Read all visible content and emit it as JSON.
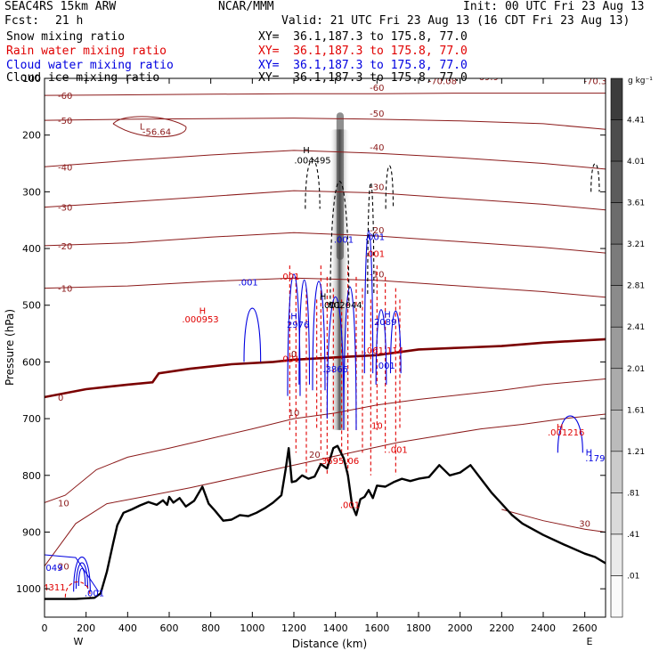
{
  "header": {
    "model": "SEAC4RS 15km ARW",
    "org": "NCAR/MMM",
    "init": "Init: 00 UTC Fri 23 Aug 13",
    "fcst_label": "Fcst:",
    "fcst_value": "21 h",
    "valid": "Valid: 21 UTC Fri 23 Aug 13 (16 CDT Fri 23 Aug 13)"
  },
  "fields": [
    {
      "name": "Snow mixing ratio",
      "xy": "XY=  36.1,187.3 to 175.8, 77.0",
      "color": "#000000"
    },
    {
      "name": "Rain water mixing ratio",
      "xy": "XY=  36.1,187.3 to 175.8, 77.0",
      "color": "#e00000"
    },
    {
      "name": "Cloud water mixing ratio",
      "xy": "XY=  36.1,187.3 to 175.8, 77.0",
      "color": "#0000e0"
    },
    {
      "name": "Cloud ice mixing ratio",
      "xy": "XY=  36.1,187.3 to 175.8, 77.0",
      "color": "#000000"
    }
  ],
  "chart_data": {
    "type": "cross-section contour",
    "xlabel": "Distance (km)",
    "ylabel": "Pressure (hPa)",
    "xlim": [
      0,
      2700
    ],
    "ylim": [
      1050,
      100
    ],
    "xticks": [
      "0",
      "200",
      "400",
      "600",
      "800",
      "1000",
      "1200",
      "1400",
      "1600",
      "1800",
      "2000",
      "2200",
      "2400",
      "2600"
    ],
    "yticks": [
      "100",
      "200",
      "300",
      "400",
      "500",
      "600",
      "700",
      "800",
      "900",
      "1000"
    ],
    "west_label": "W",
    "east_label": "E",
    "colorbar": {
      "unit": "g kg⁻¹",
      "labels": [
        "4.41",
        "4.01",
        "3.61",
        "3.21",
        "2.81",
        "2.41",
        "2.01",
        "1.61",
        "1.21",
        ".81",
        ".41",
        ".01"
      ]
    },
    "temperature_contours": {
      "color": "#8b1a1a",
      "zero_color": "#7a0000",
      "lines": [
        {
          "label": "-60",
          "pts": [
            [
              0,
              130
            ],
            [
              400,
              129
            ],
            [
              800,
              128
            ],
            [
              1200,
              127
            ],
            [
              1600,
              127
            ],
            [
              2000,
              126
            ],
            [
              2400,
              126
            ],
            [
              2700,
              126
            ]
          ]
        },
        {
          "label": "-50",
          "pts": [
            [
              0,
              174
            ],
            [
              400,
              172
            ],
            [
              800,
              171
            ],
            [
              1200,
              170
            ],
            [
              1600,
              172
            ],
            [
              2000,
              175
            ],
            [
              2400,
              180
            ],
            [
              2700,
              190
            ]
          ]
        },
        {
          "label": "-40",
          "pts": [
            [
              0,
              256
            ],
            [
              400,
              245
            ],
            [
              800,
              235
            ],
            [
              1200,
              227
            ],
            [
              1600,
              232
            ],
            [
              2000,
              240
            ],
            [
              2400,
              250
            ],
            [
              2700,
              260
            ]
          ]
        },
        {
          "label": "-30",
          "pts": [
            [
              0,
              327
            ],
            [
              400,
              318
            ],
            [
              800,
              308
            ],
            [
              1200,
              298
            ],
            [
              1600,
              302
            ],
            [
              2000,
              312
            ],
            [
              2400,
              322
            ],
            [
              2700,
              332
            ]
          ]
        },
        {
          "label": "-20",
          "pts": [
            [
              0,
              395
            ],
            [
              400,
              390
            ],
            [
              800,
              380
            ],
            [
              1200,
              372
            ],
            [
              1600,
              378
            ],
            [
              2000,
              388
            ],
            [
              2400,
              398
            ],
            [
              2700,
              408
            ]
          ]
        },
        {
          "label": "-10",
          "pts": [
            [
              0,
              470
            ],
            [
              400,
              466
            ],
            [
              800,
              458
            ],
            [
              1200,
              452
            ],
            [
              1600,
              456
            ],
            [
              2000,
              466
            ],
            [
              2400,
              476
            ],
            [
              2700,
              486
            ]
          ]
        },
        {
          "label": "0",
          "zero": true,
          "pts": [
            [
              0,
              662
            ],
            [
              200,
              648
            ],
            [
              400,
              640
            ],
            [
              520,
              636
            ],
            [
              550,
              620
            ],
            [
              700,
              612
            ],
            [
              900,
              604
            ],
            [
              1100,
              600
            ],
            [
              1200,
              596
            ],
            [
              1400,
              592
            ],
            [
              1600,
              588
            ],
            [
              1800,
              578
            ],
            [
              2000,
              575
            ],
            [
              2200,
              572
            ],
            [
              2400,
              566
            ],
            [
              2700,
              560
            ]
          ]
        },
        {
          "label": "10",
          "pts": [
            [
              0,
              848
            ],
            [
              100,
              835
            ],
            [
              250,
              790
            ],
            [
              400,
              768
            ],
            [
              600,
              752
            ],
            [
              800,
              735
            ],
            [
              1000,
              718
            ],
            [
              1200,
              700
            ],
            [
              1400,
              690
            ],
            [
              1600,
              676
            ],
            [
              1800,
              666
            ],
            [
              2000,
              658
            ],
            [
              2200,
              650
            ],
            [
              2400,
              640
            ],
            [
              2700,
              630
            ]
          ]
        },
        {
          "label": "20",
          "pts": [
            [
              0,
              960
            ],
            [
              150,
              885
            ],
            [
              300,
              850
            ],
            [
              500,
              836
            ],
            [
              700,
              822
            ],
            [
              900,
              806
            ],
            [
              1100,
              790
            ],
            [
              1300,
              774
            ],
            [
              1500,
              758
            ],
            [
              1700,
              742
            ],
            [
              1900,
              730
            ],
            [
              2100,
              718
            ],
            [
              2300,
              710
            ],
            [
              2500,
              700
            ],
            [
              2700,
              692
            ]
          ]
        },
        {
          "label": "30",
          "pts": [
            [
              2200,
              860
            ],
            [
              2400,
              880
            ],
            [
              2600,
              895
            ],
            [
              2700,
              900
            ]
          ]
        }
      ]
    },
    "terrain": [
      [
        0,
        1018
      ],
      [
        150,
        1018
      ],
      [
        240,
        1016
      ],
      [
        270,
        1008
      ],
      [
        300,
        970
      ],
      [
        330,
        920
      ],
      [
        350,
        888
      ],
      [
        380,
        866
      ],
      [
        420,
        860
      ],
      [
        460,
        853
      ],
      [
        500,
        847
      ],
      [
        540,
        852
      ],
      [
        570,
        844
      ],
      [
        590,
        852
      ],
      [
        600,
        838
      ],
      [
        620,
        848
      ],
      [
        650,
        840
      ],
      [
        680,
        855
      ],
      [
        720,
        845
      ],
      [
        760,
        820
      ],
      [
        790,
        850
      ],
      [
        820,
        862
      ],
      [
        860,
        880
      ],
      [
        900,
        878
      ],
      [
        940,
        870
      ],
      [
        980,
        872
      ],
      [
        1020,
        866
      ],
      [
        1060,
        858
      ],
      [
        1100,
        848
      ],
      [
        1140,
        835
      ],
      [
        1160,
        790
      ],
      [
        1175,
        752
      ],
      [
        1190,
        812
      ],
      [
        1210,
        810
      ],
      [
        1240,
        800
      ],
      [
        1270,
        806
      ],
      [
        1300,
        802
      ],
      [
        1330,
        780
      ],
      [
        1360,
        788
      ],
      [
        1390,
        752
      ],
      [
        1410,
        748
      ],
      [
        1440,
        770
      ],
      [
        1460,
        800
      ],
      [
        1480,
        852
      ],
      [
        1500,
        870
      ],
      [
        1520,
        842
      ],
      [
        1540,
        838
      ],
      [
        1560,
        826
      ],
      [
        1580,
        840
      ],
      [
        1600,
        818
      ],
      [
        1640,
        820
      ],
      [
        1680,
        812
      ],
      [
        1720,
        806
      ],
      [
        1760,
        810
      ],
      [
        1800,
        806
      ],
      [
        1850,
        803
      ],
      [
        1900,
        782
      ],
      [
        1950,
        800
      ],
      [
        2000,
        795
      ],
      [
        2050,
        782
      ],
      [
        2100,
        806
      ],
      [
        2150,
        830
      ],
      [
        2200,
        850
      ],
      [
        2250,
        870
      ],
      [
        2300,
        885
      ],
      [
        2400,
        905
      ],
      [
        2500,
        922
      ],
      [
        2600,
        938
      ],
      [
        2650,
        944
      ],
      [
        2700,
        955
      ]
    ],
    "contour_labels": [
      {
        "text": "-56.64",
        "x": 540,
        "y": 200,
        "color": "#8b1a1a"
      },
      {
        "text": "-70.08",
        "x": 1915,
        "y": 110,
        "color": "#8b1a1a"
      },
      {
        "text": "-69.9",
        "x": 2130,
        "y": 103,
        "color": "#8b1a1a"
      },
      {
        "text": "-70.3",
        "x": 2650,
        "y": 110,
        "color": "#8b1a1a"
      },
      {
        "text": ".004495",
        "x": 1290,
        "y": 250,
        "color": "#000000"
      },
      {
        "text": ".001",
        "x": 1440,
        "y": 390,
        "color": "#0000e0"
      },
      {
        "text": ".001",
        "x": 1590,
        "y": 385,
        "color": "#0000e0"
      },
      {
        "text": ".001",
        "x": 1590,
        "y": 415,
        "color": "#e00000"
      },
      {
        "text": ".001",
        "x": 1180,
        "y": 455,
        "color": "#e00000"
      },
      {
        "text": ".001",
        "x": 980,
        "y": 465,
        "color": "#0000e0"
      },
      {
        "text": ".001",
        "x": 1380,
        "y": 505,
        "color": "#000000"
      },
      {
        "text": ".002044",
        "x": 1440,
        "y": 505,
        "color": "#000000"
      },
      {
        "text": ".000953",
        "x": 750,
        "y": 530,
        "color": "#e00000"
      },
      {
        "text": "2976",
        "x": 1220,
        "y": 540,
        "color": "#0000e0"
      },
      {
        "text": "2089",
        "x": 1640,
        "y": 535,
        "color": "#0000e0"
      },
      {
        "text": ".001",
        "x": 1180,
        "y": 600,
        "color": "#e00000"
      },
      {
        "text": ".061",
        "x": 1585,
        "y": 585,
        "color": "#e00000"
      },
      {
        "text": ".114",
        "x": 1680,
        "y": 585,
        "color": "#e00000"
      },
      {
        "text": ".001",
        "x": 1640,
        "y": 612,
        "color": "#0000e0"
      },
      {
        "text": ".3866",
        "x": 1400,
        "y": 618,
        "color": "#0000e0"
      },
      {
        "text": "10",
        "x": 1600,
        "y": 718,
        "color": "#e00000"
      },
      {
        "text": ".001",
        "x": 1700,
        "y": 760,
        "color": "#e00000"
      },
      {
        "text": ".3695",
        "x": 1380,
        "y": 780,
        "color": "#e00000"
      },
      {
        "text": ".06",
        "x": 1480,
        "y": 780,
        "color": "#e00000"
      },
      {
        "text": ".001",
        "x": 1470,
        "y": 858,
        "color": "#e00000"
      },
      {
        "text": ".001216",
        "x": 2510,
        "y": 730,
        "color": "#e00000"
      },
      {
        "text": ".179",
        "x": 2650,
        "y": 775,
        "color": "#0000e0"
      },
      {
        "text": ".049",
        "x": 40,
        "y": 968,
        "color": "#0000e0"
      },
      {
        "text": ".4311",
        "x": 40,
        "y": 1003,
        "color": "#e00000"
      },
      {
        "text": ".001",
        "x": 240,
        "y": 1013,
        "color": "#0000e0"
      }
    ],
    "extrema_marks": [
      {
        "text": "L",
        "x": 470,
        "y": 190,
        "color": "#8b1a1a"
      },
      {
        "text": "H",
        "x": 1260,
        "y": 232,
        "color": "#000000"
      },
      {
        "text": "H",
        "x": 1340,
        "y": 490,
        "color": "#000000"
      },
      {
        "text": "H",
        "x": 760,
        "y": 515,
        "color": "#e00000"
      },
      {
        "text": "H",
        "x": 1200,
        "y": 525,
        "color": "#0000e0"
      },
      {
        "text": "H",
        "x": 1650,
        "y": 522,
        "color": "#0000e0"
      },
      {
        "text": "H",
        "x": 2480,
        "y": 720,
        "color": "#e00000"
      },
      {
        "text": "H",
        "x": 2620,
        "y": 765,
        "color": "#0000e0"
      }
    ]
  }
}
